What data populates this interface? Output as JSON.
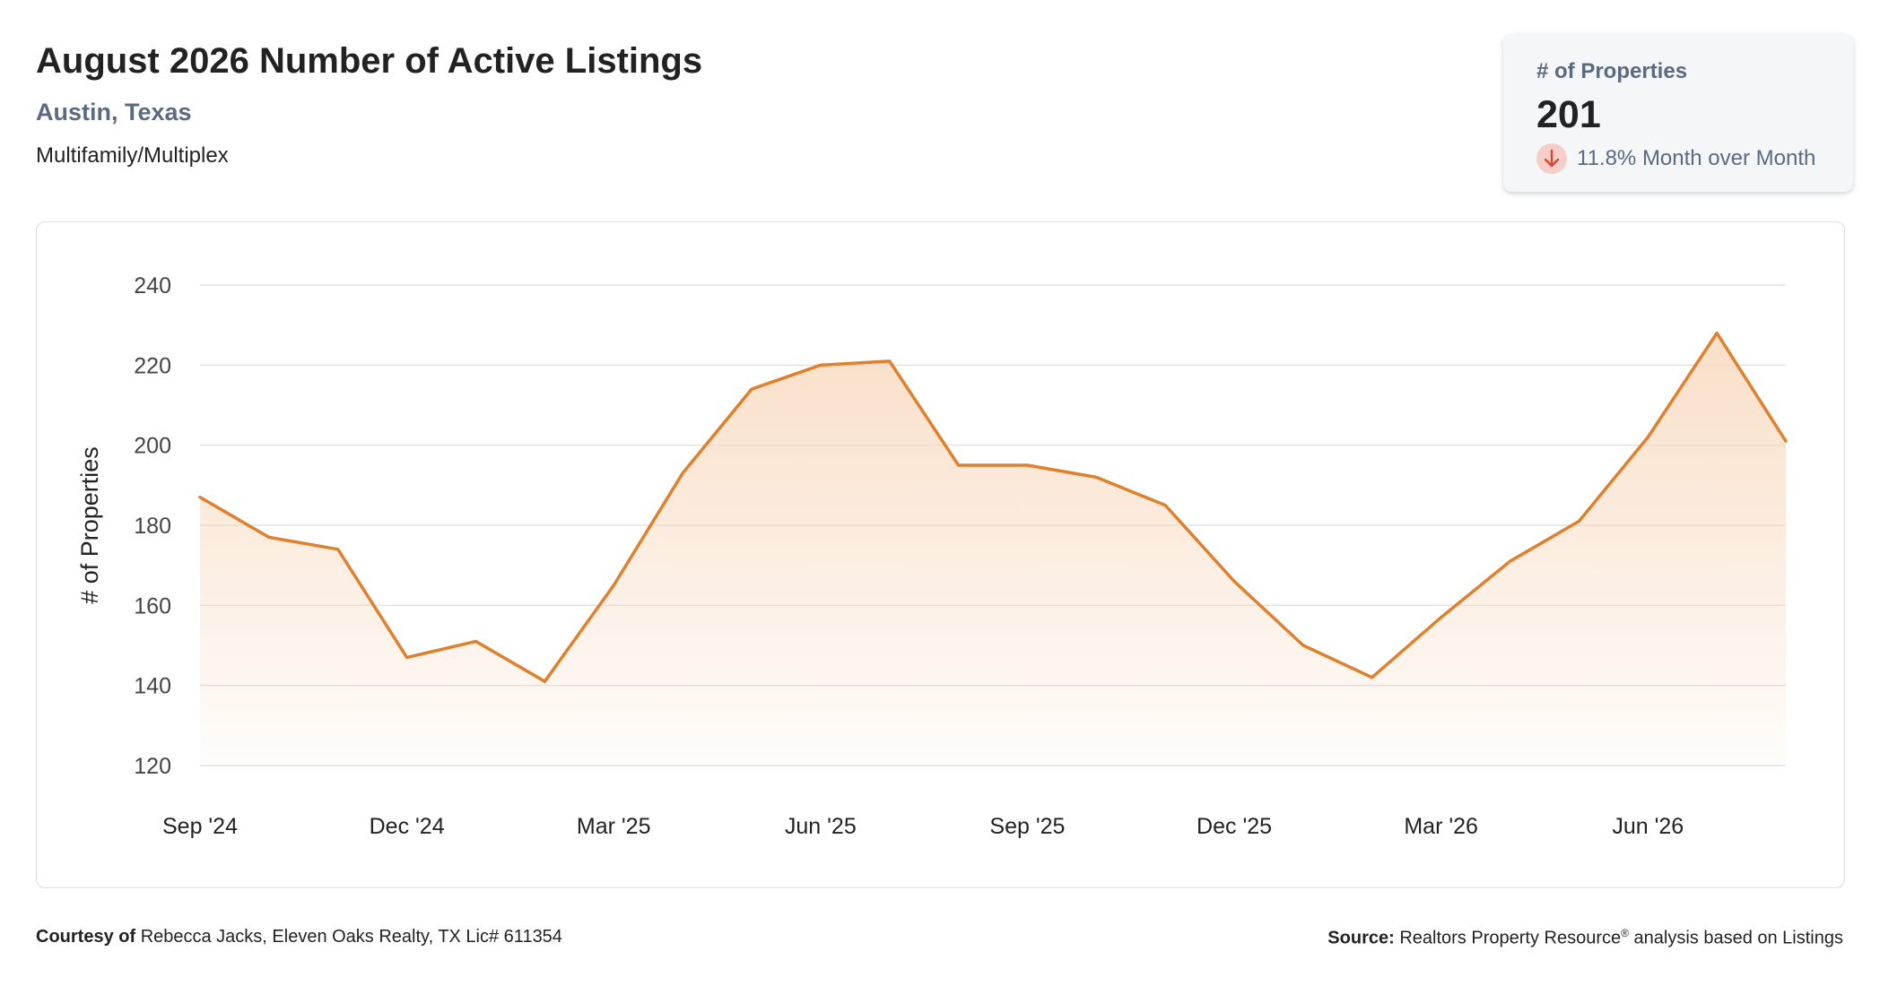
{
  "header": {
    "title": "August 2026 Number of Active Listings",
    "location": "Austin, Texas",
    "property_type": "Multifamily/Multiplex"
  },
  "stat_card": {
    "label": "# of Properties",
    "value": "201",
    "change_text": "11.8% Month over Month",
    "direction_icon": "arrow-down-icon"
  },
  "footer": {
    "courtesy_label": "Courtesy of",
    "courtesy_text": "Rebecca Jacks, Eleven Oaks Realty, TX Lic# 611354",
    "source_label": "Source:",
    "source_text_1": "Realtors Property Resource",
    "source_sup": "®",
    "source_text_2": " analysis based on Listings"
  },
  "colors": {
    "line": "#e07f2c",
    "area_top": "#f8d9be",
    "grid": "#e2e2e2",
    "accent_text": "#5a6a80",
    "down_badge": "#f6cdc8",
    "down_arrow": "#d6452f"
  },
  "chart_data": {
    "type": "area",
    "title": "",
    "xlabel": "",
    "ylabel": "# of Properties",
    "ylim": [
      120,
      240
    ],
    "yticks": [
      120,
      140,
      160,
      180,
      200,
      220,
      240
    ],
    "x": [
      "Sep 2024",
      "Oct 2024",
      "Nov 2024",
      "Dec 2024",
      "Jan 2025",
      "Feb 2025",
      "Mar 2025",
      "Apr 2025",
      "May 2025",
      "Jun 2025",
      "Jul 2025",
      "Aug 2025",
      "Sep 2025",
      "Oct 2025",
      "Nov 2025",
      "Dec 2025",
      "Jan 2026",
      "Feb 2026",
      "Mar 2026",
      "Apr 2026",
      "May 2026",
      "Jun 2026",
      "Jul 2026",
      "Aug 2026"
    ],
    "xtick_labels": [
      "Sep '24",
      "Dec '24",
      "Mar '25",
      "Jun '25",
      "Sep '25",
      "Dec '25",
      "Mar '26",
      "Jun '26"
    ],
    "series": [
      {
        "values": [
          187,
          177,
          174,
          147,
          151,
          141,
          165,
          193,
          214,
          220,
          221,
          195,
          195,
          192,
          185,
          166,
          150,
          142,
          157,
          171,
          181,
          202,
          228,
          201
        ]
      }
    ],
    "grid": true,
    "legend": "none"
  }
}
